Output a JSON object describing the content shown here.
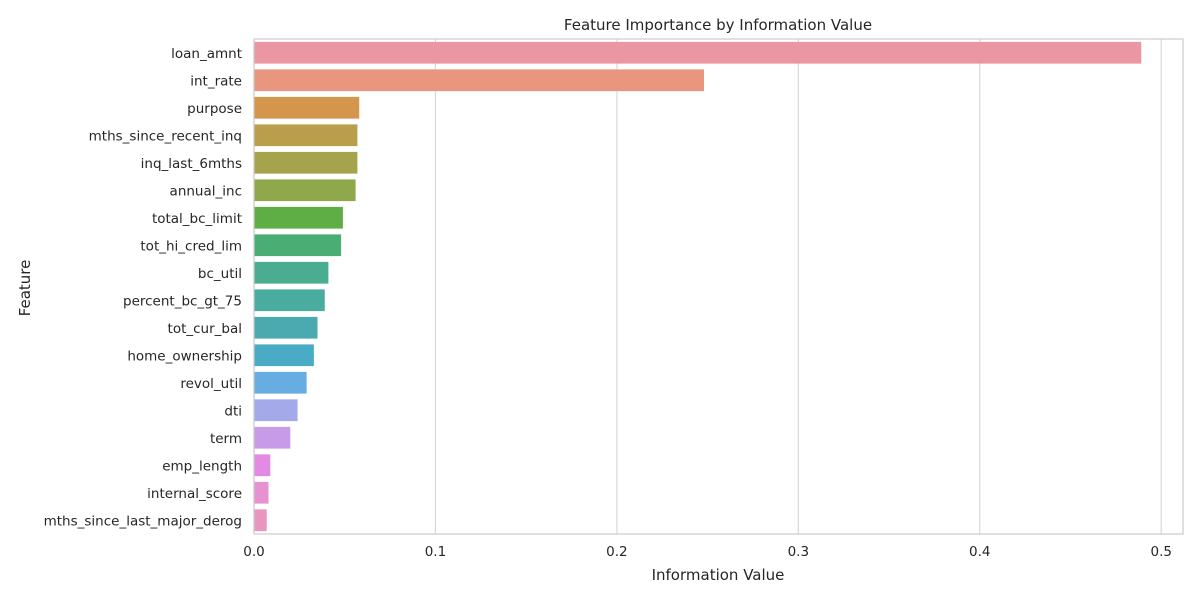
{
  "chart_data": {
    "type": "bar",
    "orientation": "horizontal",
    "title": "Feature Importance by Information Value",
    "xlabel": "Information Value",
    "ylabel": "Feature",
    "xlim": [
      0,
      0.512
    ],
    "xticks": [
      0,
      0.1,
      0.2,
      0.3,
      0.4,
      0.5
    ],
    "xtick_labels": [
      "0.0",
      "0.1",
      "0.2",
      "0.3",
      "0.4",
      "0.5"
    ],
    "grid": "vertical",
    "categories": [
      "loan_amnt",
      "int_rate",
      "purpose",
      "mths_since_recent_inq",
      "inq_last_6mths",
      "annual_inc",
      "total_bc_limit",
      "tot_hi_cred_lim",
      "bc_util",
      "percent_bc_gt_75",
      "tot_cur_bal",
      "home_ownership",
      "revol_util",
      "dti",
      "term",
      "emp_length",
      "internal_score",
      "mths_since_last_major_derog"
    ],
    "values": [
      0.489,
      0.248,
      0.058,
      0.057,
      0.057,
      0.056,
      0.049,
      0.048,
      0.041,
      0.039,
      0.035,
      0.033,
      0.029,
      0.024,
      0.02,
      0.009,
      0.008,
      0.007
    ],
    "colors": [
      "#ea96a3",
      "#e8967d",
      "#d4964a",
      "#bb9e4c",
      "#a5a34c",
      "#8fa84c",
      "#5fae45",
      "#4aae74",
      "#4aad91",
      "#4aab9f",
      "#4aaaaf",
      "#4aacc4",
      "#67ade1",
      "#a4aae9",
      "#c89be9",
      "#e38be4",
      "#e891d1",
      "#e895c0"
    ]
  }
}
